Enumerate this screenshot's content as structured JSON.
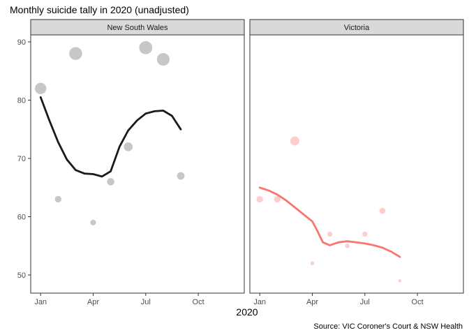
{
  "chart_data": {
    "type": "scatter",
    "title": "Monthly suicide tally in 2020 (unadjusted)",
    "xlabel": "2020",
    "ylabel": "",
    "caption": "Source: VIC Coroner's Court & NSW Health",
    "x_ticks": [
      {
        "label": "Jan",
        "month": 1
      },
      {
        "label": "Apr",
        "month": 4
      },
      {
        "label": "Jul",
        "month": 7
      },
      {
        "label": "Oct",
        "month": 10
      }
    ],
    "y_ticks": [
      50,
      60,
      70,
      80,
      90
    ],
    "xlim": [
      0.95,
      11.3
    ],
    "ylim": [
      47,
      93
    ],
    "grid": false,
    "size_encodes": "value",
    "panels": [
      {
        "name": "New South Wales",
        "point_color": "#999999",
        "line_color": "#1a1a1a",
        "points": [
          {
            "month": 1,
            "value": 82
          },
          {
            "month": 2,
            "value": 63
          },
          {
            "month": 3,
            "value": 88
          },
          {
            "month": 4,
            "value": 59
          },
          {
            "month": 5,
            "value": 66
          },
          {
            "month": 6,
            "value": 72
          },
          {
            "month": 7,
            "value": 89
          },
          {
            "month": 8,
            "value": 87
          },
          {
            "month": 9,
            "value": 67
          }
        ],
        "smooth": [
          {
            "month": 1.0,
            "value": 80.5
          },
          {
            "month": 1.5,
            "value": 76.5
          },
          {
            "month": 2.0,
            "value": 72.8
          },
          {
            "month": 2.5,
            "value": 69.8
          },
          {
            "month": 3.0,
            "value": 68.0
          },
          {
            "month": 3.5,
            "value": 67.4
          },
          {
            "month": 4.0,
            "value": 67.3
          },
          {
            "month": 4.5,
            "value": 66.9
          },
          {
            "month": 5.0,
            "value": 67.8
          },
          {
            "month": 5.5,
            "value": 72.0
          },
          {
            "month": 6.0,
            "value": 74.8
          },
          {
            "month": 6.5,
            "value": 76.5
          },
          {
            "month": 7.0,
            "value": 77.7
          },
          {
            "month": 7.5,
            "value": 78.1
          },
          {
            "month": 8.0,
            "value": 78.2
          },
          {
            "month": 8.5,
            "value": 77.3
          },
          {
            "month": 9.0,
            "value": 75.0
          }
        ]
      },
      {
        "name": "Victoria",
        "point_color": "#F8766D",
        "line_color": "#F8766D",
        "points": [
          {
            "month": 1,
            "value": 63
          },
          {
            "month": 2,
            "value": 63
          },
          {
            "month": 3,
            "value": 73
          },
          {
            "month": 4,
            "value": 52
          },
          {
            "month": 5,
            "value": 57
          },
          {
            "month": 6,
            "value": 55
          },
          {
            "month": 7,
            "value": 57
          },
          {
            "month": 8,
            "value": 61
          },
          {
            "month": 9,
            "value": 49
          }
        ],
        "smooth": [
          {
            "month": 1.0,
            "value": 65.0
          },
          {
            "month": 1.5,
            "value": 64.5
          },
          {
            "month": 2.0,
            "value": 63.8
          },
          {
            "month": 2.5,
            "value": 62.8
          },
          {
            "month": 3.0,
            "value": 61.6
          },
          {
            "month": 3.5,
            "value": 60.4
          },
          {
            "month": 4.0,
            "value": 59.2
          },
          {
            "month": 4.3,
            "value": 57.5
          },
          {
            "month": 4.6,
            "value": 55.6
          },
          {
            "month": 5.0,
            "value": 55.1
          },
          {
            "month": 5.5,
            "value": 55.6
          },
          {
            "month": 6.0,
            "value": 55.8
          },
          {
            "month": 6.5,
            "value": 55.6
          },
          {
            "month": 7.0,
            "value": 55.4
          },
          {
            "month": 7.5,
            "value": 55.1
          },
          {
            "month": 8.0,
            "value": 54.7
          },
          {
            "month": 8.5,
            "value": 54.0
          },
          {
            "month": 9.0,
            "value": 53.1
          }
        ]
      }
    ]
  }
}
